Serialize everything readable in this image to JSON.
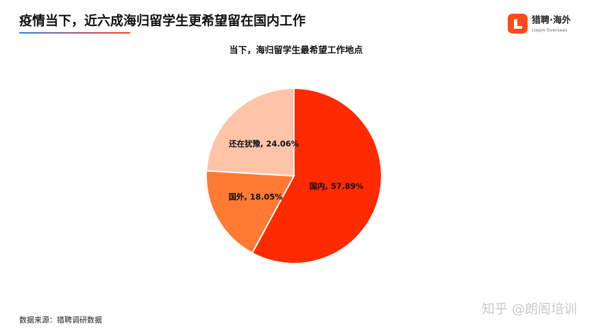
{
  "header": {
    "title": "疫情当下，近六成海归留学生更希望留在国内工作",
    "logo_name": "猎聘·海外",
    "logo_subtitle": "Liepin Overseas"
  },
  "chart_data": {
    "type": "pie",
    "title": "当下，海归留学生最希望工作地点",
    "categories": [
      "国内",
      "国外",
      "还在犹豫"
    ],
    "values": [
      57.89,
      18.05,
      24.06
    ],
    "value_labels": [
      "国内, 57.89%",
      "国外, 18.05%",
      "还在犹豫, 24.06%"
    ],
    "colors": [
      "#ff2a00",
      "#ff7a33",
      "#ffc4a8"
    ]
  },
  "footer": {
    "source": "数据来源：猎聘调研数据",
    "watermark": "知乎 @朗阁培训"
  }
}
